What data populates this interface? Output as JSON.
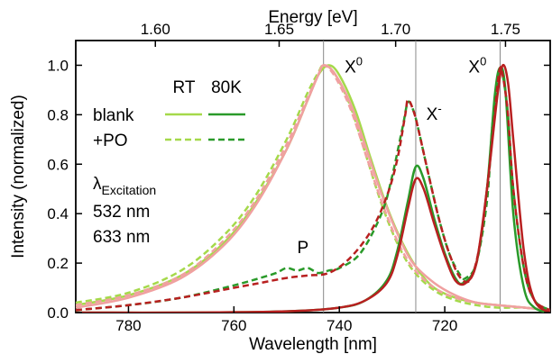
{
  "chart_data": {
    "type": "line",
    "xlabel": "Wavelength [nm]",
    "ylabel": "Intensity (normalized)",
    "top_xlabel": "Energy [eV]",
    "xlim": [
      790,
      700
    ],
    "ylim": [
      0,
      1.1
    ],
    "x_ticks": [
      780,
      760,
      740,
      720
    ],
    "y_ticks": [
      0.0,
      0.2,
      0.4,
      0.6,
      0.8,
      1.0
    ],
    "y_tick_labels": [
      "0.0",
      "0.2",
      "0.4",
      "0.6",
      "0.8",
      "1.0"
    ],
    "top_ticks": [
      1.6,
      1.65,
      1.7,
      1.75
    ],
    "top_tick_labels": [
      "1.60",
      "1.65",
      "1.70",
      "1.75"
    ],
    "vertical_lines": [
      743,
      725.5,
      709.5
    ],
    "annotations": [
      {
        "text": "X",
        "sup": "0",
        "x": 739,
        "y": 0.97
      },
      {
        "text": "X",
        "sup": "-",
        "x": 723.5,
        "y": 0.78
      },
      {
        "text": "X",
        "sup": "0",
        "x": 715.5,
        "y": 0.97
      },
      {
        "text": "P",
        "sup": "",
        "x": 748,
        "y": 0.24
      }
    ],
    "legend": {
      "col_headers": [
        "RT",
        "80K"
      ],
      "rows": [
        "blank",
        "+PO"
      ],
      "excitation_label": "λ",
      "excitation_sub": "Excitation",
      "excitation_items": [
        {
          "label": "532 nm",
          "color": "#a5d94a"
        },
        {
          "label": "633 nm",
          "color": "#e03030"
        }
      ]
    },
    "series": [
      {
        "color": "#a5d94a",
        "dashed": false,
        "width": 2.5,
        "x": [
          790,
          780,
          770,
          762,
          756,
          750,
          746,
          744,
          742,
          740,
          737,
          734,
          731,
          728,
          725,
          722,
          718,
          714,
          710,
          705,
          700
        ],
        "y": [
          0.03,
          0.07,
          0.15,
          0.28,
          0.44,
          0.66,
          0.86,
          0.96,
          1.0,
          0.96,
          0.82,
          0.62,
          0.43,
          0.28,
          0.17,
          0.1,
          0.06,
          0.04,
          0.03,
          0.02,
          0.01
        ]
      },
      {
        "color": "#a5d94a",
        "dashed": true,
        "width": 2.5,
        "x": [
          790,
          780,
          770,
          762,
          756,
          750,
          746,
          744,
          743,
          741,
          738,
          735,
          732,
          729,
          726,
          722,
          718,
          714,
          710,
          705,
          700
        ],
        "y": [
          0.04,
          0.08,
          0.17,
          0.31,
          0.47,
          0.7,
          0.89,
          0.97,
          1.0,
          0.97,
          0.84,
          0.64,
          0.44,
          0.28,
          0.17,
          0.09,
          0.05,
          0.03,
          0.02,
          0.02,
          0.01
        ]
      },
      {
        "color": "#f0a0a0",
        "dashed": false,
        "width": 2.5,
        "x": [
          790,
          780,
          770,
          762,
          756,
          750,
          746,
          744,
          743,
          741,
          738,
          735,
          732,
          729,
          726,
          722,
          718,
          714,
          710,
          705,
          700
        ],
        "y": [
          0.02,
          0.06,
          0.14,
          0.27,
          0.43,
          0.66,
          0.86,
          0.96,
          1.0,
          0.97,
          0.85,
          0.67,
          0.48,
          0.32,
          0.2,
          0.12,
          0.07,
          0.04,
          0.03,
          0.02,
          0.01
        ]
      },
      {
        "color": "#f0a0a0",
        "dashed": true,
        "width": 2.5,
        "x": [
          790,
          780,
          770,
          762,
          756,
          750,
          746,
          744,
          743,
          741,
          738,
          735,
          732,
          729,
          726,
          722,
          718,
          714,
          710,
          705,
          700
        ],
        "y": [
          0.03,
          0.07,
          0.15,
          0.29,
          0.45,
          0.68,
          0.87,
          0.96,
          1.0,
          0.96,
          0.83,
          0.64,
          0.45,
          0.29,
          0.18,
          0.1,
          0.06,
          0.04,
          0.03,
          0.02,
          0.01
        ]
      },
      {
        "color": "#2a9a2a",
        "dashed": false,
        "width": 2.5,
        "x": [
          790,
          770,
          750,
          740,
          735,
          731,
          729,
          727,
          725.5,
          724,
          722,
          720,
          718,
          716.5,
          714,
          712,
          710.5,
          709.5,
          708.5,
          707,
          705,
          703,
          700
        ],
        "y": [
          0.0,
          0.0,
          0.005,
          0.02,
          0.05,
          0.13,
          0.25,
          0.45,
          0.59,
          0.54,
          0.38,
          0.24,
          0.14,
          0.12,
          0.2,
          0.5,
          0.88,
          0.99,
          0.9,
          0.4,
          0.1,
          0.02,
          0.0
        ]
      },
      {
        "color": "#2a9a2a",
        "dashed": true,
        "width": 2.5,
        "x": [
          790,
          780,
          770,
          760,
          755,
          752,
          750,
          748,
          746,
          744,
          742,
          740,
          736,
          732,
          730,
          728,
          727,
          726,
          725,
          723,
          721,
          719,
          717,
          716,
          714,
          712,
          711,
          710,
          709.5,
          709,
          708,
          707,
          705,
          703,
          700
        ],
        "y": [
          0.01,
          0.03,
          0.06,
          0.11,
          0.14,
          0.16,
          0.18,
          0.17,
          0.18,
          0.16,
          0.17,
          0.18,
          0.24,
          0.4,
          0.55,
          0.75,
          0.85,
          0.82,
          0.74,
          0.55,
          0.37,
          0.23,
          0.15,
          0.14,
          0.2,
          0.45,
          0.75,
          0.93,
          0.99,
          0.96,
          0.8,
          0.5,
          0.18,
          0.05,
          0.01
        ]
      },
      {
        "color": "#b82020",
        "dashed": false,
        "width": 2.5,
        "x": [
          790,
          770,
          750,
          740,
          735,
          731,
          729,
          727,
          725.5,
          724,
          722,
          720,
          718,
          716,
          714,
          712,
          710,
          709,
          708,
          707,
          705,
          703,
          700
        ],
        "y": [
          0.0,
          0.0,
          0.005,
          0.02,
          0.05,
          0.12,
          0.23,
          0.42,
          0.54,
          0.5,
          0.36,
          0.23,
          0.13,
          0.12,
          0.2,
          0.5,
          0.88,
          1.0,
          0.93,
          0.7,
          0.25,
          0.05,
          0.0
        ]
      },
      {
        "color": "#b82020",
        "dashed": true,
        "width": 2.5,
        "x": [
          790,
          780,
          770,
          760,
          755,
          750,
          746,
          742,
          738,
          734,
          731,
          729,
          727.5,
          727,
          726,
          725,
          723,
          721,
          719,
          717,
          715,
          713,
          711,
          710,
          709.5,
          709,
          708,
          707,
          705,
          703,
          700
        ],
        "y": [
          0.01,
          0.03,
          0.06,
          0.1,
          0.12,
          0.14,
          0.15,
          0.16,
          0.22,
          0.33,
          0.47,
          0.62,
          0.8,
          0.86,
          0.82,
          0.74,
          0.55,
          0.37,
          0.23,
          0.14,
          0.14,
          0.32,
          0.7,
          0.92,
          0.99,
          0.96,
          0.8,
          0.5,
          0.18,
          0.05,
          0.01
        ]
      }
    ]
  }
}
